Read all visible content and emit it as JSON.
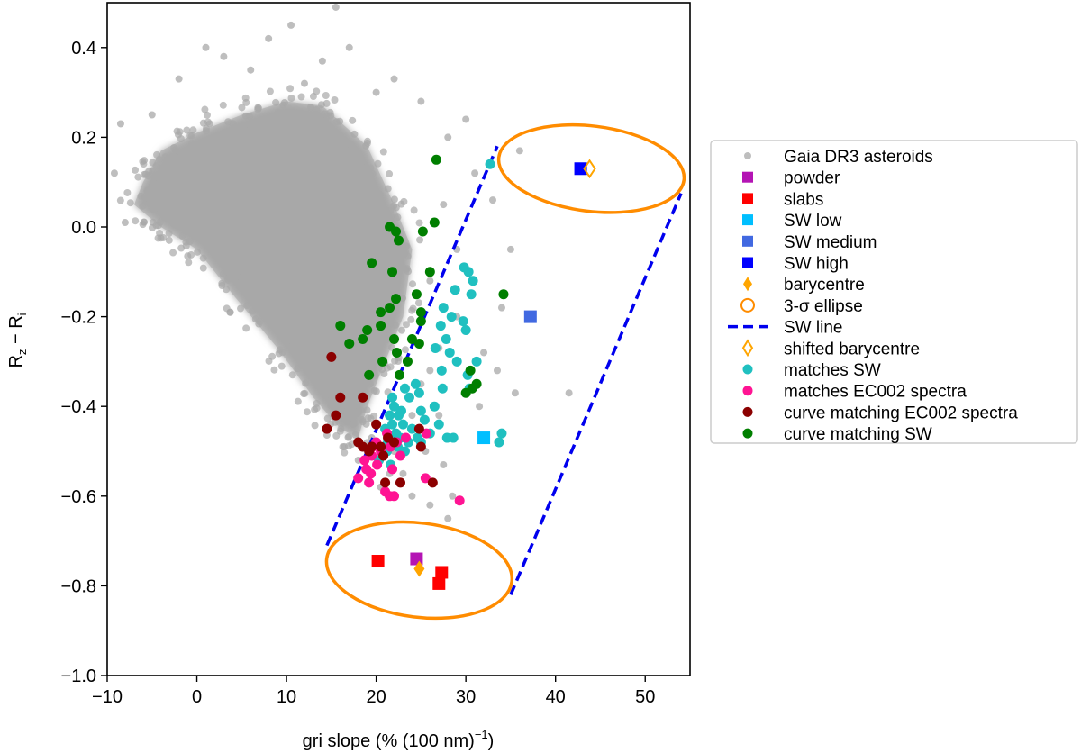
{
  "chart_data": {
    "type": "scatter",
    "xlabel": "gri slope (% (100 nm)",
    "xlabel_sup": "−1",
    "xlabel_close": ")",
    "ylabel_R1": "R",
    "ylabel_sub1": "z",
    "ylabel_mid": " − R",
    "ylabel_sub2": "i",
    "xlim": [
      -10,
      55
    ],
    "ylim": [
      -1.0,
      0.5
    ],
    "xticks": [
      -10,
      0,
      10,
      20,
      30,
      40,
      50
    ],
    "xtick_labels": [
      "−10",
      "0",
      "10",
      "20",
      "30",
      "40",
      "50"
    ],
    "yticks": [
      -1.0,
      -0.8,
      -0.6,
      -0.4,
      -0.2,
      0.0,
      0.2,
      0.4
    ],
    "ytick_labels": [
      "−1.0",
      "−0.8",
      "−0.6",
      "−0.4",
      "−0.2",
      "0.0",
      "0.2",
      "0.4"
    ],
    "colors": {
      "gaia": "#a8a8a8",
      "powder": "#b414b4",
      "slabs": "#ff0000",
      "sw_low": "#00bfff",
      "sw_medium": "#4169e1",
      "sw_high": "#0000ff",
      "barycentre": "#ffa500",
      "ellipse": "#ff8c00",
      "sw_line": "#0000ee",
      "matches_sw": "#20c0c0",
      "matches_ec002": "#ff1493",
      "curve_ec002": "#8b0000",
      "curve_sw": "#007f00"
    },
    "gaia_cloud": {
      "description_core": "dense cloud",
      "core_polygon": [
        [
          -6,
          0.1
        ],
        [
          -4,
          0.17
        ],
        [
          0,
          0.21
        ],
        [
          5,
          0.25
        ],
        [
          10,
          0.28
        ],
        [
          14,
          0.27
        ],
        [
          19,
          0.18
        ],
        [
          22,
          0.05
        ],
        [
          24,
          -0.05
        ],
        [
          23,
          -0.2
        ],
        [
          21,
          -0.3
        ],
        [
          19,
          -0.4
        ],
        [
          18,
          -0.47
        ],
        [
          16,
          -0.45
        ],
        [
          13,
          -0.38
        ],
        [
          9,
          -0.27
        ],
        [
          4,
          -0.15
        ],
        [
          0,
          -0.05
        ],
        [
          -4,
          0.0
        ],
        [
          -7,
          0.05
        ]
      ],
      "outliers": [
        [
          -8.5,
          0.23
        ],
        [
          -9.2,
          0.12
        ],
        [
          -8,
          0.01
        ],
        [
          -2,
          0.33
        ],
        [
          1,
          0.4
        ],
        [
          3,
          0.38
        ],
        [
          6,
          0.35
        ],
        [
          8,
          0.42
        ],
        [
          10.5,
          0.45
        ],
        [
          14,
          0.37
        ],
        [
          15.5,
          0.49
        ],
        [
          17,
          0.4
        ],
        [
          22,
          0.33
        ],
        [
          25,
          0.28
        ],
        [
          28,
          0.2
        ],
        [
          30,
          0.24
        ],
        [
          31,
          0.12
        ],
        [
          27.5,
          0.05
        ],
        [
          29,
          -0.05
        ],
        [
          26,
          -0.12
        ],
        [
          33,
          0.06
        ],
        [
          35,
          -0.05
        ],
        [
          34,
          -0.18
        ],
        [
          32,
          -0.28
        ],
        [
          33.5,
          -0.32
        ],
        [
          31.5,
          -0.4
        ],
        [
          35.5,
          -0.37
        ],
        [
          41.5,
          -0.37
        ],
        [
          36,
          0.17
        ],
        [
          20,
          0.3
        ],
        [
          12,
          0.32
        ],
        [
          -5,
          0.25
        ],
        [
          26,
          -0.32
        ],
        [
          27,
          -0.42
        ],
        [
          25.5,
          -0.5
        ],
        [
          27.5,
          -0.53
        ],
        [
          23,
          -0.55
        ],
        [
          28.5,
          -0.6
        ],
        [
          26,
          -0.62
        ],
        [
          24,
          -0.6
        ],
        [
          20.5,
          -0.58
        ],
        [
          18,
          -0.52
        ],
        [
          22,
          -0.5
        ],
        [
          19.5,
          -0.47
        ],
        [
          29,
          -0.2
        ],
        [
          27,
          -0.27
        ],
        [
          24,
          -0.42
        ],
        [
          25,
          -0.35
        ],
        [
          21.5,
          -0.55
        ],
        [
          28,
          -0.65
        ]
      ]
    },
    "series": [
      {
        "name": "powder",
        "marker": "square",
        "color_key": "powder",
        "points": [
          [
            24.5,
            -0.74
          ]
        ]
      },
      {
        "name": "slabs",
        "marker": "square",
        "color_key": "slabs",
        "points": [
          [
            20.2,
            -0.745
          ],
          [
            27.3,
            -0.77
          ],
          [
            27.0,
            -0.795
          ]
        ]
      },
      {
        "name": "SW low",
        "marker": "square",
        "color_key": "sw_low",
        "points": [
          [
            32,
            -0.47
          ]
        ]
      },
      {
        "name": "SW medium",
        "marker": "square",
        "color_key": "sw_medium",
        "points": [
          [
            37.2,
            -0.2
          ]
        ]
      },
      {
        "name": "SW high",
        "marker": "square",
        "color_key": "sw_high",
        "points": [
          [
            42.8,
            0.13
          ]
        ]
      },
      {
        "name": "barycentre",
        "marker": "diamond",
        "color_key": "barycentre",
        "points": [
          [
            24.8,
            -0.762
          ]
        ]
      },
      {
        "name": "shifted barycentre",
        "marker": "diamond-open",
        "color_key": "barycentre",
        "points": [
          [
            43.8,
            0.13
          ]
        ]
      },
      {
        "name": "matches SW",
        "marker": "circle",
        "color_key": "matches_sw",
        "points": [
          [
            32.7,
            0.14
          ],
          [
            29.8,
            -0.09
          ],
          [
            30.3,
            -0.1
          ],
          [
            30.8,
            -0.12
          ],
          [
            28.8,
            -0.14
          ],
          [
            30.6,
            -0.15
          ],
          [
            27.5,
            -0.18
          ],
          [
            28.4,
            -0.2
          ],
          [
            27.2,
            -0.22
          ],
          [
            29.7,
            -0.21
          ],
          [
            30.0,
            -0.23
          ],
          [
            27.8,
            -0.25
          ],
          [
            26.6,
            -0.27
          ],
          [
            28.2,
            -0.28
          ],
          [
            29.0,
            -0.3
          ],
          [
            31.2,
            -0.3
          ],
          [
            27.3,
            -0.32
          ],
          [
            27.4,
            -0.36
          ],
          [
            26.5,
            -0.4
          ],
          [
            25.0,
            -0.41
          ],
          [
            27.0,
            -0.44
          ],
          [
            25.4,
            -0.43
          ],
          [
            24.8,
            -0.37
          ],
          [
            23.2,
            -0.36
          ],
          [
            23.7,
            -0.38
          ],
          [
            24.4,
            -0.35
          ],
          [
            22.8,
            -0.41
          ],
          [
            22.5,
            -0.42
          ],
          [
            21.8,
            -0.38
          ],
          [
            21.8,
            -0.44
          ],
          [
            21.0,
            -0.45
          ],
          [
            21.3,
            -0.48
          ],
          [
            22.2,
            -0.46
          ],
          [
            23.6,
            -0.48
          ],
          [
            24.6,
            -0.47
          ],
          [
            23.2,
            -0.5
          ],
          [
            21.6,
            -0.53
          ],
          [
            22.4,
            -0.49
          ],
          [
            34.0,
            -0.46
          ],
          [
            33.7,
            -0.48
          ],
          [
            28.6,
            -0.47
          ],
          [
            27.9,
            -0.47
          ],
          [
            30.2,
            -0.33
          ],
          [
            30.4,
            -0.36
          ],
          [
            21.5,
            -0.42
          ],
          [
            22.0,
            -0.4
          ],
          [
            23.0,
            -0.44
          ],
          [
            24.0,
            -0.45
          ],
          [
            22.7,
            -0.47
          ],
          [
            21.2,
            -0.5
          ],
          [
            20.3,
            -0.52
          ],
          [
            25.0,
            -0.48
          ],
          [
            26.0,
            -0.46
          ]
        ]
      },
      {
        "name": "matches EC002 spectra",
        "marker": "circle",
        "color_key": "matches_ec002",
        "points": [
          [
            18.0,
            -0.56
          ],
          [
            19.2,
            -0.57
          ],
          [
            19.4,
            -0.55
          ],
          [
            20.1,
            -0.53
          ],
          [
            21.0,
            -0.59
          ],
          [
            21.5,
            -0.6
          ],
          [
            22.0,
            -0.6
          ],
          [
            20.5,
            -0.5
          ],
          [
            21.2,
            -0.46
          ],
          [
            22.3,
            -0.48
          ],
          [
            22.7,
            -0.51
          ],
          [
            23.3,
            -0.47
          ],
          [
            20.0,
            -0.48
          ],
          [
            19.5,
            -0.51
          ],
          [
            18.7,
            -0.52
          ],
          [
            21.8,
            -0.54
          ],
          [
            25.5,
            -0.56
          ],
          [
            25.6,
            -0.46
          ],
          [
            29.3,
            -0.61
          ],
          [
            19.6,
            -0.49
          ],
          [
            21.6,
            -0.49
          ],
          [
            18.9,
            -0.54
          ]
        ]
      },
      {
        "name": "curve matching EC002 spectra",
        "marker": "circle",
        "color_key": "curve_ec002",
        "points": [
          [
            15.0,
            -0.29
          ],
          [
            16.0,
            -0.38
          ],
          [
            14.5,
            -0.45
          ],
          [
            15.5,
            -0.42
          ],
          [
            18.5,
            -0.38
          ],
          [
            19.5,
            -0.49
          ],
          [
            18.5,
            -0.49
          ],
          [
            20.0,
            -0.44
          ],
          [
            20.5,
            -0.49
          ],
          [
            21.3,
            -0.47
          ],
          [
            20.8,
            -0.51
          ],
          [
            22.0,
            -0.48
          ],
          [
            24.8,
            -0.45
          ],
          [
            25.0,
            -0.49
          ],
          [
            21.0,
            -0.57
          ],
          [
            22.7,
            -0.57
          ],
          [
            19.2,
            -0.5
          ],
          [
            18.0,
            -0.48
          ],
          [
            26.3,
            -0.57
          ]
        ]
      },
      {
        "name": "curve matching SW",
        "marker": "circle",
        "color_key": "curve_sw",
        "points": [
          [
            26.7,
            0.15
          ],
          [
            21.5,
            -0.0
          ],
          [
            22.2,
            -0.01
          ],
          [
            22.5,
            -0.03
          ],
          [
            26.5,
            0.01
          ],
          [
            25.2,
            -0.01
          ],
          [
            21.8,
            -0.1
          ],
          [
            26.0,
            -0.1
          ],
          [
            24.5,
            -0.15
          ],
          [
            22.2,
            -0.16
          ],
          [
            21.5,
            -0.18
          ],
          [
            20.5,
            -0.19
          ],
          [
            25.0,
            -0.19
          ],
          [
            19.5,
            -0.08
          ],
          [
            19.0,
            -0.23
          ],
          [
            20.5,
            -0.22
          ],
          [
            22.0,
            -0.25
          ],
          [
            24.8,
            -0.26
          ],
          [
            25.0,
            -0.21
          ],
          [
            16.0,
            -0.22
          ],
          [
            17.0,
            -0.26
          ],
          [
            18.5,
            -0.25
          ],
          [
            19.2,
            -0.33
          ],
          [
            20.7,
            -0.3
          ],
          [
            22.3,
            -0.28
          ],
          [
            23.5,
            -0.3
          ],
          [
            24.0,
            -0.25
          ],
          [
            22.6,
            -0.33
          ],
          [
            30.5,
            -0.32
          ],
          [
            31.2,
            -0.35
          ],
          [
            30.7,
            -0.36
          ],
          [
            30.0,
            -0.37
          ],
          [
            34.2,
            -0.15
          ]
        ]
      }
    ],
    "ellipses": [
      {
        "name": "3-σ ellipse lower",
        "center": [
          24.8,
          -0.765
        ],
        "rx": 10.4,
        "ry": 0.105
      },
      {
        "name": "3-σ ellipse upper",
        "center": [
          44.0,
          0.13
        ],
        "rx": 10.4,
        "ry": 0.095
      }
    ],
    "sw_lines": [
      {
        "from": [
          14.5,
          -0.71
        ],
        "to": [
          33.5,
          0.18
        ]
      },
      {
        "from": [
          35.0,
          -0.82
        ],
        "to": [
          54.0,
          0.075
        ]
      }
    ],
    "legend": {
      "placement": "right",
      "entries": [
        {
          "label": "Gaia DR3 asteroids",
          "marker": "circle-small",
          "color_key": "gaia"
        },
        {
          "label": "powder",
          "marker": "square",
          "color_key": "powder"
        },
        {
          "label": "slabs",
          "marker": "square",
          "color_key": "slabs"
        },
        {
          "label": "SW low",
          "marker": "square",
          "color_key": "sw_low"
        },
        {
          "label": "SW medium",
          "marker": "square",
          "color_key": "sw_medium"
        },
        {
          "label": "SW high",
          "marker": "square",
          "color_key": "sw_high"
        },
        {
          "label": "barycentre",
          "marker": "diamond",
          "color_key": "barycentre"
        },
        {
          "label": "3-σ ellipse",
          "marker": "circle-open",
          "color_key": "ellipse"
        },
        {
          "label": "SW line",
          "marker": "dash",
          "color_key": "sw_line"
        },
        {
          "label": "shifted barycentre",
          "marker": "diamond-open",
          "color_key": "barycentre"
        },
        {
          "label": "matches SW",
          "marker": "circle",
          "color_key": "matches_sw"
        },
        {
          "label": "matches EC002 spectra",
          "marker": "circle",
          "color_key": "matches_ec002"
        },
        {
          "label": "curve matching EC002 spectra",
          "marker": "circle",
          "color_key": "curve_ec002"
        },
        {
          "label": "curve matching SW",
          "marker": "circle",
          "color_key": "curve_sw"
        }
      ]
    }
  }
}
